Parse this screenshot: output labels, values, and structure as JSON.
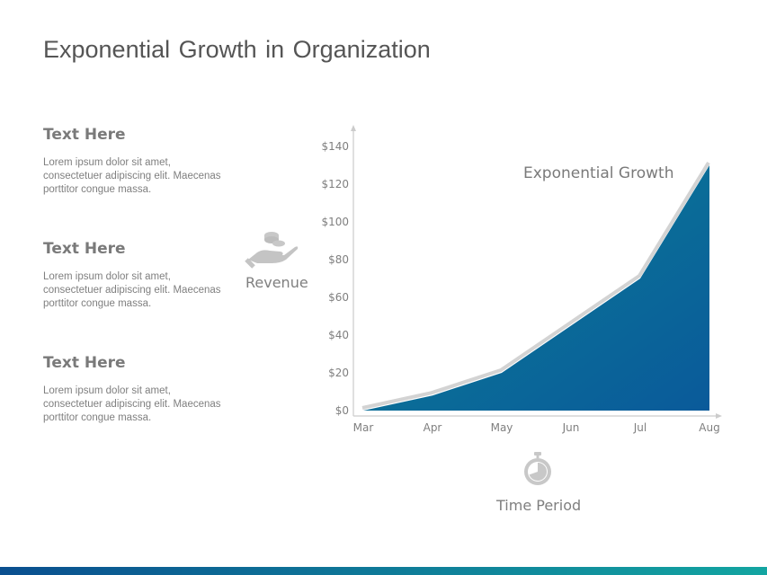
{
  "title": "Exponential  Growth in Organization",
  "text_blocks": [
    {
      "heading": "Text Here",
      "body": "Lorem ipsum dolor sit amet, consectetuer adipiscing elit. Maecenas  porttitor congue massa."
    },
    {
      "heading": "Text Here",
      "body": "Lorem ipsum dolor sit amet, consectetuer adipiscing elit. Maecenas  porttitor congue massa."
    },
    {
      "heading": "Text Here",
      "body": "Lorem ipsum dolor sit amet, consectetuer adipiscing elit. Maecenas  porttitor congue massa."
    }
  ],
  "revenue_label": "Revenue",
  "revenue_icon": "hand-coins-icon",
  "time_label": "Time Period",
  "time_icon": "stopwatch-icon",
  "colors": {
    "area_top": "#0b7e93",
    "area_bottom": "#0a5a9a",
    "axis": "#cccccc",
    "tick_text": "#7f7f7f",
    "bar_left": "#0a4f8f",
    "bar_right": "#13a5a1"
  },
  "chart_data": {
    "type": "area",
    "title": "",
    "annotation": "Exponential Growth",
    "categories": [
      "Mar",
      "Apr",
      "May",
      "Jun",
      "Jul",
      "Aug"
    ],
    "values": [
      0,
      8,
      20,
      45,
      70,
      130
    ],
    "y_ticks": [
      "$0",
      "$20",
      "$40",
      "$60",
      "$80",
      "$100",
      "$120",
      "$140"
    ],
    "ylim": [
      0,
      140
    ],
    "xlabel": "Time Period",
    "ylabel": "Revenue",
    "grid": false
  }
}
